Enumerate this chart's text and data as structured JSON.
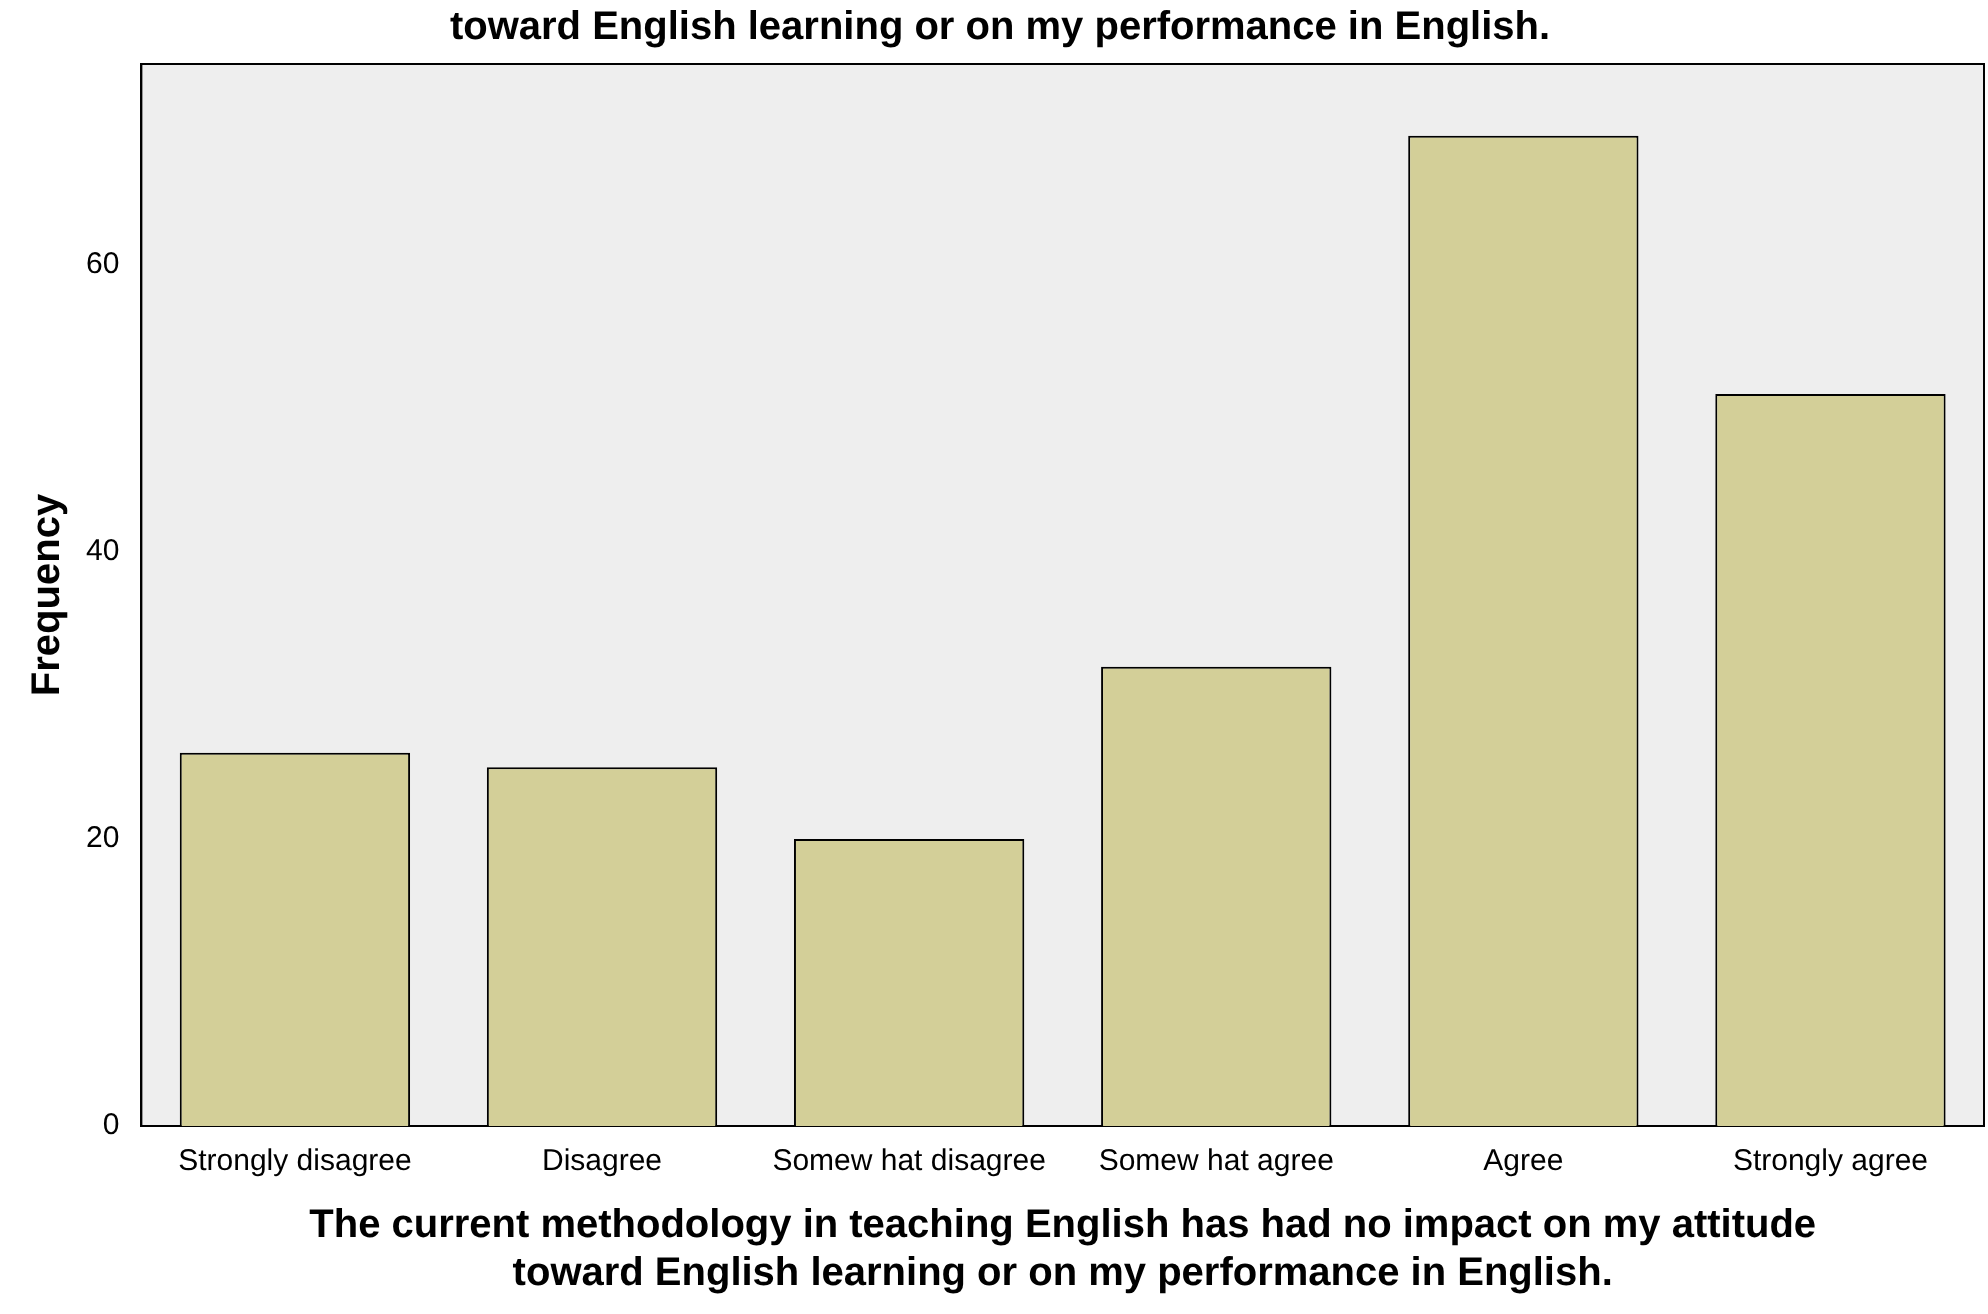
{
  "chart_data": {
    "type": "bar",
    "title": "toward English learning or on my performance in English.",
    "xlabel": "The current methodology in teaching English has had no impact on my attitude toward English learning or on my performance in English.",
    "ylabel": "Frequency",
    "categories": [
      "Strongly disagree",
      "Disagree",
      "Somew hat disagree",
      "Somew hat agree",
      "Agree",
      "Strongly agree"
    ],
    "values": [
      26,
      25,
      20,
      32,
      69,
      51
    ],
    "color": "#d3cf98",
    "ylim": [
      0,
      74
    ],
    "yticks": [
      0,
      20,
      40,
      60
    ],
    "grid": false,
    "legend": false
  }
}
